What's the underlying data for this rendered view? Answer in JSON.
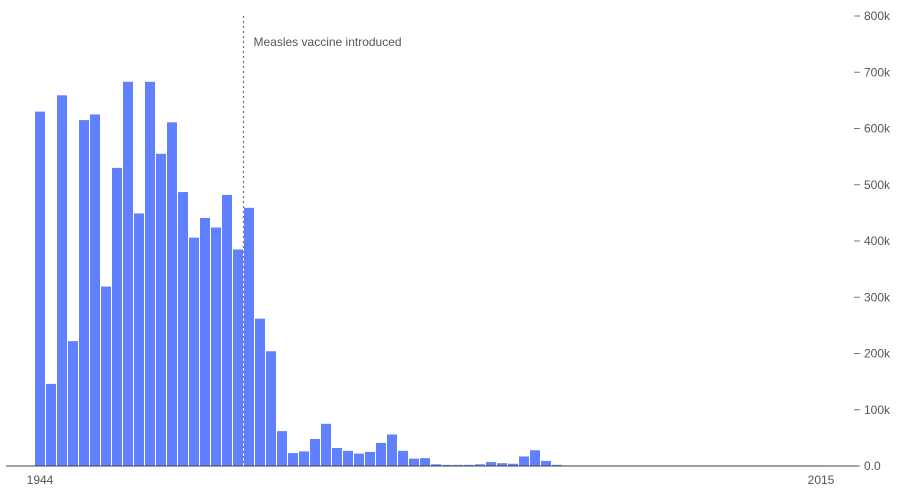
{
  "chart_data": {
    "type": "bar",
    "title": "",
    "xlabel": "",
    "ylabel": "",
    "x_start": 1944,
    "x_end": 2015,
    "x_tick_labels": [
      "1944",
      "2015"
    ],
    "ylim": [
      0,
      800000
    ],
    "y_ticks": [
      0,
      100000,
      200000,
      300000,
      400000,
      500000,
      600000,
      700000,
      800000
    ],
    "y_tick_labels": [
      "0.0",
      "100k",
      "200k",
      "300k",
      "400k",
      "500k",
      "600k",
      "700k",
      "800k"
    ],
    "y_axis_position": "right",
    "grid": false,
    "bar_color": "#6080ff",
    "annotation": {
      "text": "Measles vaccine introduced",
      "year": 1963
    },
    "categories": [
      1944,
      1945,
      1946,
      1947,
      1948,
      1949,
      1950,
      1951,
      1952,
      1953,
      1954,
      1955,
      1956,
      1957,
      1958,
      1959,
      1960,
      1961,
      1962,
      1963,
      1964,
      1965,
      1966,
      1967,
      1968,
      1969,
      1970,
      1971,
      1972,
      1973,
      1974,
      1975,
      1976,
      1977,
      1978,
      1979,
      1980,
      1981,
      1982,
      1983,
      1984,
      1985,
      1986,
      1987,
      1988,
      1989,
      1990,
      1991,
      1992,
      1993,
      1994,
      1995,
      1996,
      1997,
      1998,
      1999,
      2000,
      2001,
      2002,
      2003,
      2004,
      2005,
      2006,
      2007,
      2008,
      2009,
      2010,
      2011,
      2012,
      2013,
      2014,
      2015
    ],
    "values": [
      630000,
      146000,
      659000,
      222000,
      615000,
      625000,
      319000,
      530000,
      683000,
      449000,
      683000,
      555000,
      611000,
      487000,
      406000,
      441000,
      424000,
      482000,
      385000,
      459000,
      262000,
      204000,
      62000,
      23000,
      26000,
      48000,
      75000,
      32000,
      27000,
      22000,
      25000,
      41000,
      56000,
      27000,
      13000,
      14000,
      3000,
      2000,
      2000,
      2000,
      3000,
      7000,
      5000,
      4000,
      17000,
      28000,
      9000,
      2000,
      1000,
      1000,
      1000,
      1000,
      1000,
      1000,
      1000,
      1000,
      1000,
      1000,
      1000,
      1000,
      1000,
      1000,
      1000,
      1000,
      1000,
      1000,
      1000,
      1000,
      1000,
      1000,
      1000,
      1000
    ]
  }
}
